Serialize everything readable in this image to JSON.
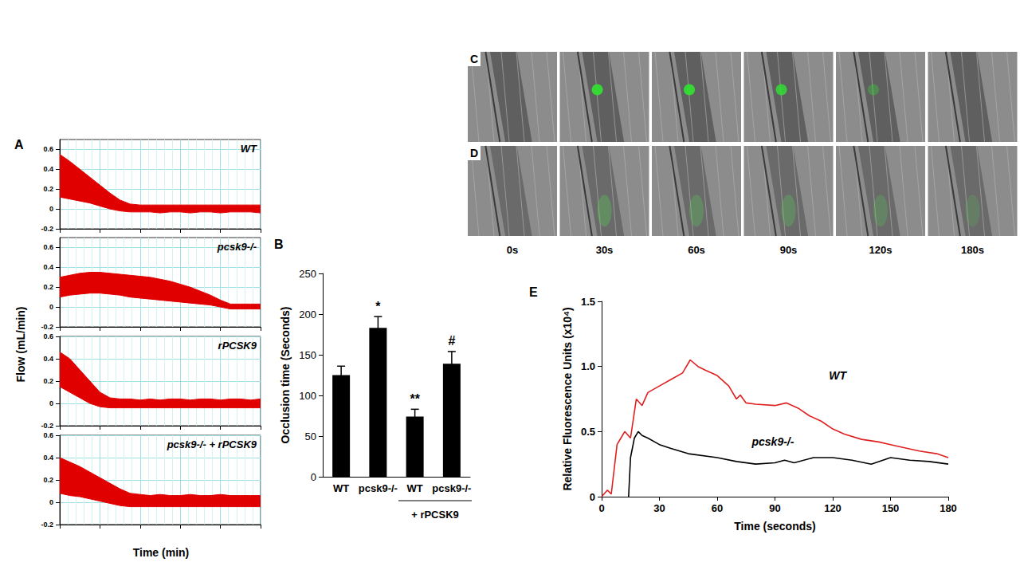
{
  "chart_data": [
    {
      "panel": "A",
      "type": "band",
      "annotation": "WT",
      "ylabel": "Flow (mL/min)",
      "x": [
        0,
        0.25,
        0.5,
        0.75,
        1,
        1.25,
        1.5,
        1.75,
        2,
        2.25,
        2.5,
        2.75,
        3,
        3.25,
        3.5,
        3.75,
        4,
        4.25,
        4.5,
        4.75,
        5
      ],
      "upper": [
        0.55,
        0.48,
        0.4,
        0.32,
        0.24,
        0.16,
        0.09,
        0.05,
        0.04,
        0.04,
        0.04,
        0.04,
        0.04,
        0.04,
        0.04,
        0.04,
        0.04,
        0.04,
        0.04,
        0.04,
        0.04
      ],
      "lower": [
        0.12,
        0.1,
        0.08,
        0.06,
        0.03,
        0,
        -0.02,
        -0.03,
        -0.03,
        -0.03,
        -0.04,
        -0.03,
        -0.03,
        -0.04,
        -0.03,
        -0.03,
        -0.04,
        -0.03,
        -0.03,
        -0.03,
        -0.04
      ],
      "color": "#e00000",
      "xlim": [
        0,
        5
      ],
      "xticks": [
        0,
        1,
        2,
        3,
        4,
        5
      ],
      "ylim": [
        -0.2,
        0.7
      ],
      "yticks": [
        -0.2,
        0,
        0.2,
        0.4,
        0.6
      ],
      "grid": true,
      "tick_labels": "y"
    },
    {
      "type": "band",
      "annotation": "pcsk9-/-",
      "x": [
        0,
        0.25,
        0.5,
        0.75,
        1,
        1.25,
        1.5,
        1.75,
        2,
        2.25,
        2.5,
        2.75,
        3,
        3.25,
        3.5,
        3.75,
        4,
        4.25,
        4.5,
        4.75,
        5
      ],
      "upper": [
        0.3,
        0.32,
        0.34,
        0.35,
        0.35,
        0.34,
        0.33,
        0.32,
        0.31,
        0.3,
        0.28,
        0.26,
        0.23,
        0.2,
        0.16,
        0.12,
        0.07,
        0.03,
        0.03,
        0.03,
        0.03
      ],
      "lower": [
        0.1,
        0.12,
        0.13,
        0.14,
        0.14,
        0.13,
        0.12,
        0.1,
        0.09,
        0.08,
        0.07,
        0.06,
        0.05,
        0.04,
        0.03,
        0.02,
        0,
        -0.02,
        -0.02,
        -0.02,
        -0.02
      ],
      "color": "#e00000",
      "xlim": [
        0,
        5
      ],
      "xticks": [
        0,
        1,
        2,
        3,
        4,
        5
      ],
      "ylim": [
        -0.2,
        0.7
      ],
      "yticks": [
        -0.2,
        0,
        0.2,
        0.4,
        0.6
      ],
      "grid": true,
      "tick_labels": "y"
    },
    {
      "type": "band",
      "annotation": "rPCSK9",
      "x": [
        0,
        0.25,
        0.5,
        0.75,
        1,
        1.25,
        1.5,
        1.75,
        2,
        2.25,
        2.5,
        2.75,
        3,
        3.25,
        3.5,
        3.75,
        4,
        4.25,
        4.5,
        4.75,
        5
      ],
      "upper": [
        0.46,
        0.4,
        0.3,
        0.2,
        0.1,
        0.05,
        0.04,
        0.04,
        0.03,
        0.04,
        0.03,
        0.04,
        0.04,
        0.03,
        0.04,
        0.04,
        0.03,
        0.04,
        0.04,
        0.03,
        0.04
      ],
      "lower": [
        0.15,
        0.1,
        0.05,
        0,
        -0.03,
        -0.04,
        -0.04,
        -0.04,
        -0.04,
        -0.04,
        -0.04,
        -0.04,
        -0.04,
        -0.04,
        -0.04,
        -0.04,
        -0.04,
        -0.04,
        -0.04,
        -0.04,
        -0.04
      ],
      "color": "#e00000",
      "xlim": [
        0,
        5
      ],
      "xticks": [
        0,
        1,
        2,
        3,
        4,
        5
      ],
      "ylim": [
        -0.2,
        0.6
      ],
      "yticks": [
        -0.2,
        0,
        0.2,
        0.4,
        0.6
      ],
      "grid": true,
      "tick_labels": "y"
    },
    {
      "type": "band",
      "annotation": "pcsk9-/- + rPCSK9",
      "xlabel": "Time (min)",
      "x": [
        0,
        0.25,
        0.5,
        0.75,
        1,
        1.25,
        1.5,
        1.75,
        2,
        2.25,
        2.5,
        2.75,
        3,
        3.25,
        3.5,
        3.75,
        4,
        4.25,
        4.5,
        4.75,
        5
      ],
      "upper": [
        0.4,
        0.36,
        0.32,
        0.27,
        0.22,
        0.17,
        0.12,
        0.08,
        0.07,
        0.06,
        0.07,
        0.06,
        0.06,
        0.07,
        0.06,
        0.06,
        0.07,
        0.06,
        0.06,
        0.06,
        0.06
      ],
      "lower": [
        0.08,
        0.06,
        0.05,
        0.03,
        0.01,
        -0.01,
        -0.03,
        -0.04,
        -0.04,
        -0.04,
        -0.04,
        -0.04,
        -0.04,
        -0.04,
        -0.04,
        -0.04,
        -0.04,
        -0.04,
        -0.04,
        -0.04,
        -0.04
      ],
      "color": "#e00000",
      "xlim": [
        0,
        5
      ],
      "xticks": [
        0,
        1,
        2,
        3,
        4,
        5
      ],
      "ylim": [
        -0.2,
        0.6
      ],
      "yticks": [
        -0.2,
        0,
        0.2,
        0.4,
        0.6
      ],
      "grid": true,
      "tick_labels": "y"
    },
    {
      "panel": "B",
      "type": "bar",
      "ylabel": "Occlusion time (Seconds)",
      "categories": [
        "WT",
        "pcsk9-/-",
        "WT",
        "pcsk9-/-"
      ],
      "values": [
        125,
        183,
        74,
        139
      ],
      "errors": [
        11,
        14,
        9,
        15
      ],
      "significance": [
        null,
        "*",
        "**",
        "#"
      ],
      "group_label": "+ rPCSK9",
      "color": "#000000",
      "ylim": [
        0,
        250
      ],
      "yticks": [
        0,
        50,
        100,
        150,
        200,
        250
      ],
      "grid": false
    },
    {
      "panel": "E",
      "type": "line",
      "xlabel": "Time (seconds)",
      "ylabel": "Relative Fluorescence Units (x10⁴)",
      "series": [
        {
          "color": "#e02020",
          "x": [
            0,
            3,
            5,
            8,
            10,
            12,
            15,
            18,
            21,
            24,
            30,
            36,
            42,
            46,
            50,
            54,
            60,
            66,
            70,
            72,
            75,
            80,
            90,
            96,
            102,
            108,
            114,
            120,
            126,
            135,
            144,
            150,
            156,
            165,
            174,
            180
          ],
          "values": [
            0,
            0.05,
            0.02,
            0.4,
            0.45,
            0.5,
            0.45,
            0.75,
            0.7,
            0.8,
            0.85,
            0.9,
            0.95,
            1.05,
            1.0,
            0.97,
            0.93,
            0.85,
            0.75,
            0.78,
            0.72,
            0.71,
            0.7,
            0.72,
            0.68,
            0.62,
            0.58,
            0.52,
            0.48,
            0.44,
            0.42,
            0.4,
            0.38,
            0.35,
            0.33,
            0.3
          ]
        },
        {
          "color": "#000000",
          "x": [
            14,
            15,
            17,
            19,
            21,
            24,
            30,
            36,
            45,
            60,
            70,
            80,
            90,
            95,
            100,
            110,
            120,
            130,
            140,
            150,
            160,
            170,
            180
          ],
          "values": [
            0,
            0.3,
            0.45,
            0.5,
            0.47,
            0.45,
            0.4,
            0.37,
            0.33,
            0.3,
            0.27,
            0.25,
            0.26,
            0.28,
            0.26,
            0.3,
            0.3,
            0.28,
            0.25,
            0.3,
            0.28,
            0.27,
            0.25
          ]
        }
      ],
      "annotations": [
        {
          "text": "WT",
          "x": 118,
          "y": 0.93
        },
        {
          "text": "pcsk9-/-",
          "x": 78,
          "y": 0.42
        }
      ],
      "xlim": [
        0,
        180
      ],
      "xticks": [
        0,
        30,
        60,
        90,
        120,
        150,
        180
      ],
      "ylim": [
        0,
        1.5
      ],
      "yticks": [
        0,
        {
          "value": 0.5,
          "label": "0.5"
        },
        {
          "value": 1,
          "label": "1.0"
        },
        {
          "value": 1.5,
          "label": "1.5"
        }
      ],
      "grid": false
    }
  ],
  "images": {
    "panels": [
      "C",
      "D"
    ],
    "times": [
      "0s",
      "30s",
      "60s",
      "90s",
      "120s",
      "180s"
    ]
  }
}
